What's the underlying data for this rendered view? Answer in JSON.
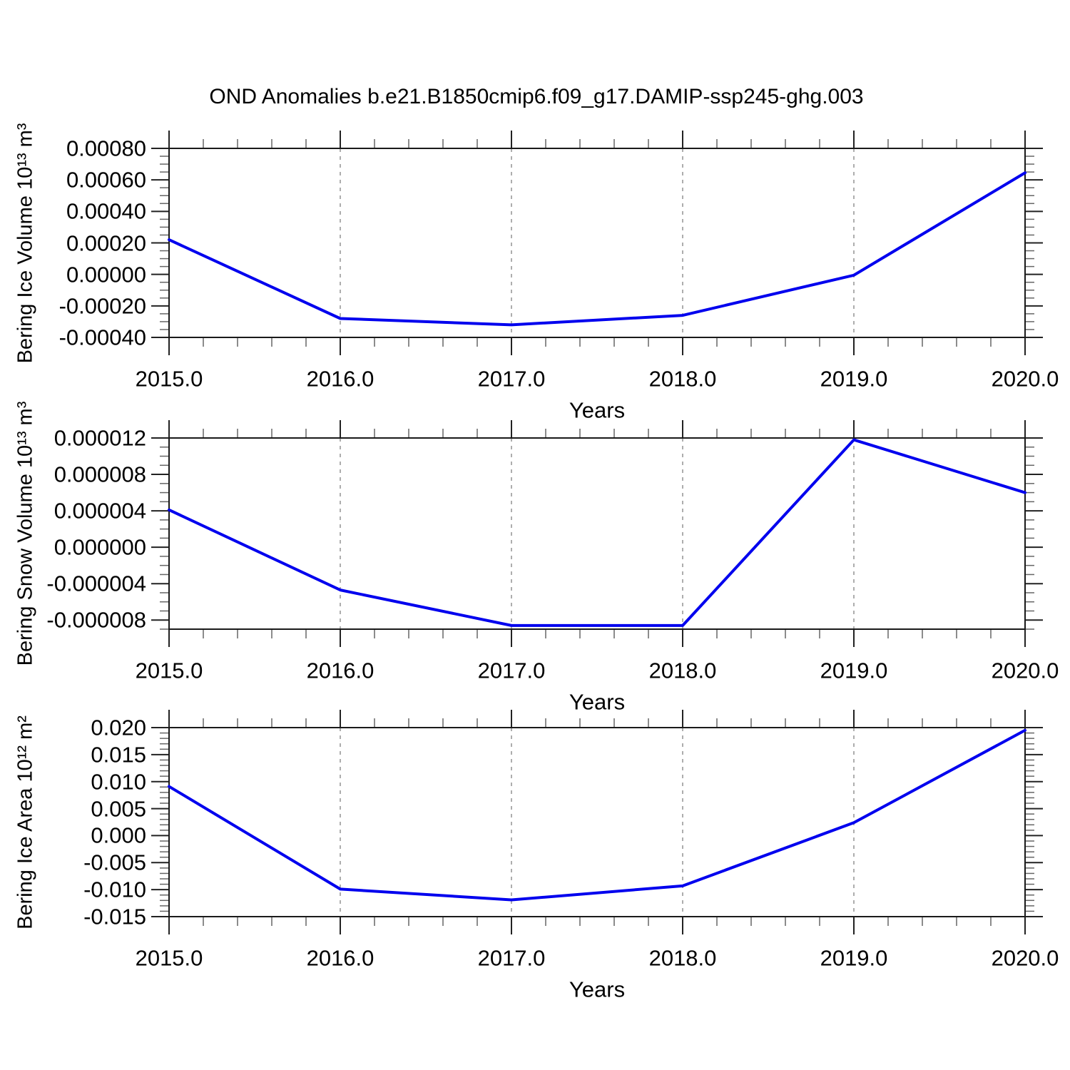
{
  "title": "OND Anomalies b.e21.B1850cmip6.f09_g17.DAMIP-ssp245-ghg.003",
  "xaxis": {
    "label": "Years",
    "tick_years": [
      2015,
      2016,
      2017,
      2018,
      2019,
      2020
    ],
    "tick_labels": [
      "2015.0",
      "2016.0",
      "2017.0",
      "2018.0",
      "2019.0",
      "2020.0"
    ],
    "minor_step": 0.2,
    "gridline_years": [
      2016,
      2017,
      2018,
      2019
    ],
    "xlim": [
      2015,
      2020
    ]
  },
  "styles": {
    "line_color": "#0000ee",
    "grid_color": "#999999",
    "frame_color": "#1a1a1a",
    "major_tick_color": "#222222",
    "minor_tick_color": "#666666",
    "text_color": "#000000",
    "background": "#ffffff"
  },
  "chart_data": [
    {
      "type": "line",
      "name": "bering-ice-volume",
      "ylabel": "Bering Ice Volume 10¹³ m³",
      "xlabel": "Years",
      "x": [
        2015,
        2016,
        2017,
        2018,
        2019,
        2020
      ],
      "values": [
        0.00022,
        -0.00028,
        -0.00032,
        -0.00026,
        -5e-06,
        0.000645
      ],
      "ylim": [
        -0.0004,
        0.0008
      ],
      "ytick_values": [
        0.0008,
        0.0006,
        0.0004,
        0.0002,
        0.0,
        -0.0002,
        -0.0004
      ],
      "ytick_labels": [
        "0.00080",
        "0.00060",
        "0.00040",
        "0.00020",
        "0.00000",
        "-0.00020",
        "-0.00040"
      ],
      "y_minor_step": 5e-05
    },
    {
      "type": "line",
      "name": "bering-snow-volume",
      "ylabel": "Bering Snow Volume 10¹³ m³",
      "xlabel": "Years",
      "x": [
        2015,
        2016,
        2017,
        2018,
        2019,
        2020
      ],
      "values": [
        4.1e-06,
        -4.7e-06,
        -8.6e-06,
        -8.6e-06,
        1.18e-05,
        6e-06
      ],
      "ylim": [
        -9e-06,
        1.2e-05
      ],
      "ytick_values": [
        1.2e-05,
        8e-06,
        4e-06,
        0.0,
        -4e-06,
        -8e-06
      ],
      "ytick_labels": [
        "0.000012",
        "0.000008",
        "0.000004",
        "0.000000",
        "-0.000004",
        "-0.000008"
      ],
      "y_minor_step": 1e-06
    },
    {
      "type": "line",
      "name": "bering-ice-area",
      "ylabel": "Bering Ice Area 10¹² m²",
      "xlabel": "Years",
      "x": [
        2015,
        2016,
        2017,
        2018,
        2019,
        2020
      ],
      "values": [
        0.0091,
        -0.0099,
        -0.0119,
        -0.0093,
        0.0024,
        0.0195
      ],
      "ylim": [
        -0.015,
        0.02
      ],
      "ytick_values": [
        0.02,
        0.015,
        0.01,
        0.005,
        0.0,
        -0.005,
        -0.01,
        -0.015
      ],
      "ytick_labels": [
        "0.020",
        "0.015",
        "0.010",
        "0.005",
        "0.000",
        "-0.005",
        "-0.010",
        "-0.015"
      ],
      "y_minor_step": 0.001
    }
  ]
}
